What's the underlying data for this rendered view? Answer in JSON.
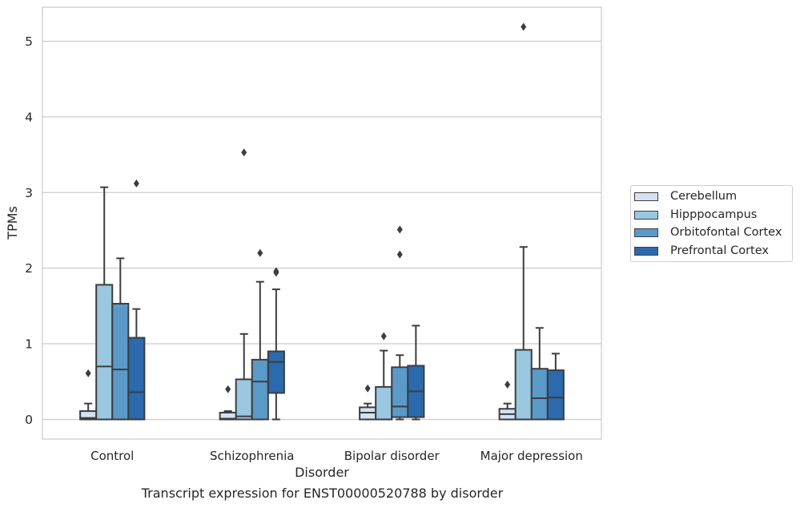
{
  "chart_data": {
    "type": "box",
    "caption": "Transcript expression for ENST00000520788 by disorder",
    "xlabel": "Disorder",
    "ylabel": "TPMs",
    "ylim": [
      -0.26,
      5.45
    ],
    "yticks": [
      0,
      1,
      2,
      3,
      4,
      5
    ],
    "grid": true,
    "legend_position": "right",
    "categories": [
      "Control",
      "Schizophrenia",
      "Bipolar disorder",
      "Major depression"
    ],
    "series": [
      {
        "name": "Cerebellum",
        "color": "#d3e3f3",
        "boxes": [
          {
            "min": 0.0,
            "q1": 0.0,
            "median": 0.02,
            "q3": 0.11,
            "max": 0.21,
            "outliers": [
              0.61
            ]
          },
          {
            "min": 0.0,
            "q1": 0.0,
            "median": 0.01,
            "q3": 0.09,
            "max": 0.11,
            "outliers": [
              0.4
            ]
          },
          {
            "min": 0.0,
            "q1": 0.0,
            "median": 0.09,
            "q3": 0.16,
            "max": 0.21,
            "outliers": [
              0.41
            ]
          },
          {
            "min": 0.0,
            "q1": 0.0,
            "median": 0.07,
            "q3": 0.14,
            "max": 0.21,
            "outliers": [
              0.46
            ]
          }
        ]
      },
      {
        "name": "Hipppocampus",
        "color": "#9ac8e0",
        "boxes": [
          {
            "min": 0.0,
            "q1": 0.0,
            "median": 0.7,
            "q3": 1.78,
            "max": 3.07,
            "outliers": []
          },
          {
            "min": 0.0,
            "q1": 0.0,
            "median": 0.04,
            "q3": 0.53,
            "max": 1.13,
            "outliers": [
              3.53
            ]
          },
          {
            "min": 0.0,
            "q1": 0.0,
            "median": 0.0,
            "q3": 0.43,
            "max": 0.91,
            "outliers": [
              1.1
            ]
          },
          {
            "min": 0.0,
            "q1": 0.0,
            "median": 0.0,
            "q3": 0.92,
            "max": 2.28,
            "outliers": [
              5.19
            ]
          }
        ]
      },
      {
        "name": "Orbitofontal Cortex",
        "color": "#5a9ac9",
        "boxes": [
          {
            "min": 0.0,
            "q1": 0.0,
            "median": 0.66,
            "q3": 1.53,
            "max": 2.13,
            "outliers": []
          },
          {
            "min": 0.0,
            "q1": 0.0,
            "median": 0.5,
            "q3": 0.79,
            "max": 1.82,
            "outliers": [
              2.2
            ]
          },
          {
            "min": 0.0,
            "q1": 0.03,
            "median": 0.17,
            "q3": 0.69,
            "max": 0.85,
            "outliers": [
              2.18,
              2.51
            ]
          },
          {
            "min": 0.0,
            "q1": 0.0,
            "median": 0.28,
            "q3": 0.67,
            "max": 1.21,
            "outliers": []
          }
        ]
      },
      {
        "name": "Prefrontal Cortex",
        "color": "#2a6aad",
        "boxes": [
          {
            "min": 0.0,
            "q1": 0.0,
            "median": 0.36,
            "q3": 1.08,
            "max": 1.46,
            "outliers": [
              3.12
            ]
          },
          {
            "min": 0.0,
            "q1": 0.35,
            "median": 0.76,
            "q3": 0.9,
            "max": 1.72,
            "outliers": [
              1.94,
              1.96
            ]
          },
          {
            "min": 0.0,
            "q1": 0.03,
            "median": 0.37,
            "q3": 0.71,
            "max": 1.24,
            "outliers": []
          },
          {
            "min": 0.0,
            "q1": 0.0,
            "median": 0.29,
            "q3": 0.65,
            "max": 0.87,
            "outliers": []
          }
        ]
      }
    ]
  }
}
